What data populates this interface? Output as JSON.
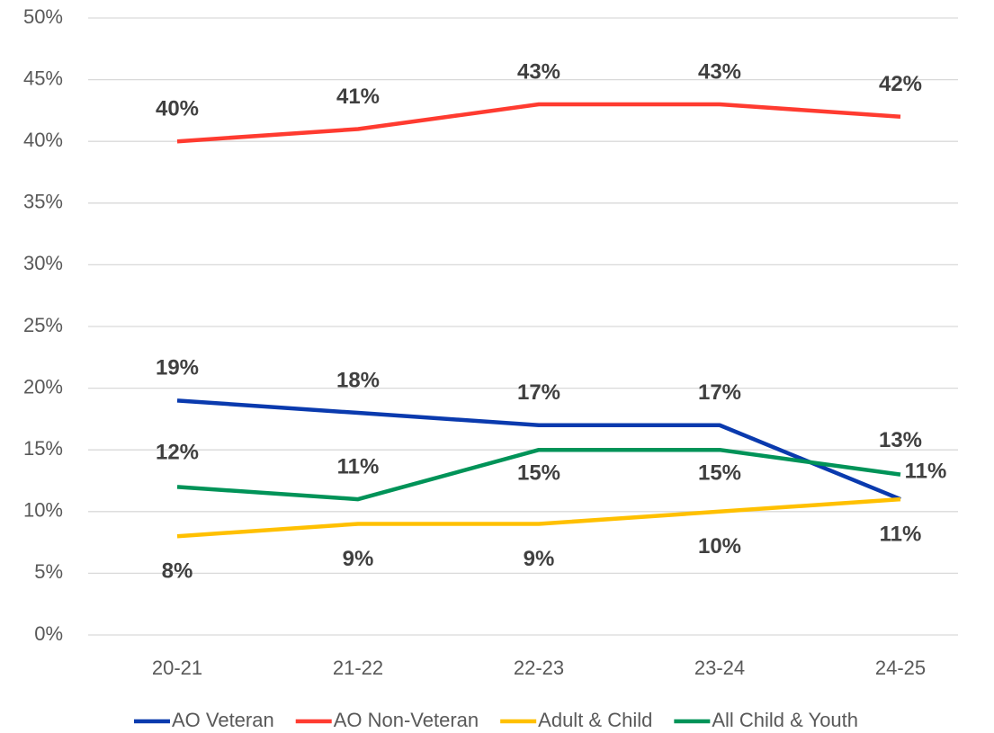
{
  "chart_data": {
    "type": "line",
    "categories": [
      "20-21",
      "21-22",
      "22-23",
      "23-24",
      "24-25"
    ],
    "series": [
      {
        "name": "AO Veteran",
        "color": "#0a3aae",
        "values": [
          19,
          18,
          17,
          17,
          11
        ],
        "value_labels": [
          "19%",
          "18%",
          "17%",
          "17%",
          "11%"
        ]
      },
      {
        "name": "AO Non-Veteran",
        "color": "#ff3b30",
        "values": [
          40,
          41,
          43,
          43,
          42
        ],
        "value_labels": [
          "40%",
          "41%",
          "43%",
          "43%",
          "42%"
        ]
      },
      {
        "name": "Adult & Child",
        "color": "#ffc000",
        "values": [
          8,
          9,
          9,
          10,
          11
        ],
        "value_labels": [
          "8%",
          "9%",
          "9%",
          "10%",
          "11%"
        ]
      },
      {
        "name": "All Child & Youth",
        "color": "#009358",
        "values": [
          12,
          11,
          15,
          15,
          13
        ],
        "value_labels": [
          "12%",
          "11%",
          "15%",
          "15%",
          "13%"
        ]
      }
    ],
    "ylim": [
      0,
      50
    ],
    "yticks": [
      {
        "value": 0,
        "label": "0%"
      },
      {
        "value": 5,
        "label": "5%"
      },
      {
        "value": 10,
        "label": "10%"
      },
      {
        "value": 15,
        "label": "15%"
      },
      {
        "value": 20,
        "label": "20%"
      },
      {
        "value": 25,
        "label": "25%"
      },
      {
        "value": 30,
        "label": "30%"
      },
      {
        "value": 35,
        "label": "35%"
      },
      {
        "value": 40,
        "label": "40%"
      },
      {
        "value": 45,
        "label": "45%"
      },
      {
        "value": 50,
        "label": "50%"
      }
    ],
    "grid": true,
    "legend": "bottom"
  }
}
